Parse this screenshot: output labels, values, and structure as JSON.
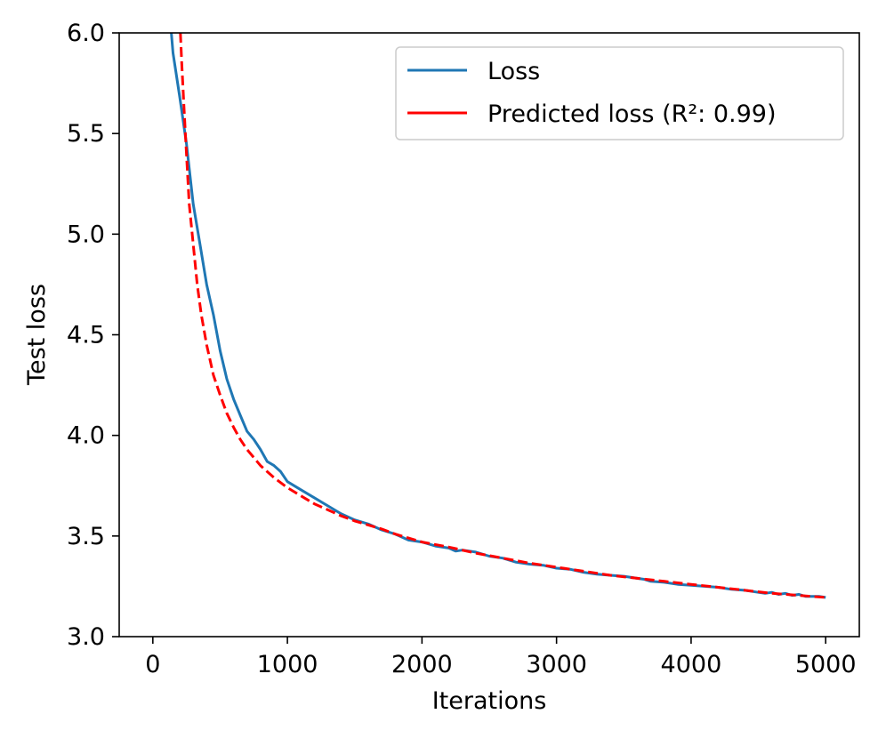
{
  "chart_data": {
    "type": "line",
    "title": "",
    "xlabel": "Iterations",
    "ylabel": "Test loss",
    "xlim": [
      -250,
      5250
    ],
    "ylim": [
      3.0,
      6.0
    ],
    "xticks": [
      0,
      1000,
      2000,
      3000,
      4000,
      5000
    ],
    "xtick_labels": [
      "0",
      "1000",
      "2000",
      "3000",
      "4000",
      "5000"
    ],
    "yticks": [
      3.0,
      3.5,
      4.0,
      4.5,
      5.0,
      5.5,
      6.0
    ],
    "ytick_labels": [
      "3.0",
      "3.5",
      "4.0",
      "4.5",
      "5.0",
      "5.5",
      "6.0"
    ],
    "grid": false,
    "legend_position": "top-right",
    "series": [
      {
        "name": "Loss",
        "color": "#1f77b4",
        "style": "solid",
        "x": [
          100,
          150,
          200,
          250,
          300,
          350,
          400,
          450,
          500,
          550,
          600,
          650,
          700,
          750,
          800,
          850,
          900,
          950,
          1000,
          1100,
          1200,
          1300,
          1400,
          1500,
          1600,
          1700,
          1800,
          1900,
          2000,
          2100,
          2200,
          2250,
          2300,
          2400,
          2500,
          2600,
          2700,
          2800,
          2900,
          3000,
          3100,
          3200,
          3300,
          3400,
          3500,
          3600,
          3650,
          3700,
          3800,
          3900,
          4000,
          4100,
          4200,
          4300,
          4400,
          4500,
          4550,
          4600,
          4650,
          4700,
          4750,
          4800,
          4850,
          4900,
          4950,
          5000
        ],
        "y": [
          6.3,
          5.9,
          5.68,
          5.45,
          5.15,
          4.95,
          4.75,
          4.6,
          4.42,
          4.28,
          4.18,
          4.1,
          4.02,
          3.98,
          3.93,
          3.87,
          3.85,
          3.82,
          3.77,
          3.73,
          3.69,
          3.65,
          3.61,
          3.58,
          3.56,
          3.53,
          3.51,
          3.48,
          3.47,
          3.45,
          3.44,
          3.425,
          3.43,
          3.42,
          3.4,
          3.39,
          3.37,
          3.36,
          3.355,
          3.34,
          3.335,
          3.32,
          3.31,
          3.305,
          3.3,
          3.29,
          3.285,
          3.275,
          3.27,
          3.26,
          3.255,
          3.25,
          3.245,
          3.235,
          3.23,
          3.22,
          3.215,
          3.22,
          3.21,
          3.215,
          3.205,
          3.21,
          3.2,
          3.2,
          3.2,
          3.195
        ]
      },
      {
        "name": "Predicted loss (R²: 0.99)",
        "color": "#ff0000",
        "style": "dashed",
        "x": [
          205,
          215,
          230,
          250,
          270,
          300,
          330,
          360,
          400,
          450,
          500,
          550,
          600,
          650,
          700,
          800,
          900,
          1000,
          1100,
          1200,
          1300,
          1400,
          1500,
          1600,
          1700,
          1800,
          1900,
          2000,
          2200,
          2400,
          2600,
          2800,
          3000,
          3200,
          3400,
          3600,
          3800,
          4000,
          4200,
          4400,
          4600,
          4800,
          5000
        ],
        "y": [
          6.0,
          5.85,
          5.65,
          5.4,
          5.15,
          4.95,
          4.75,
          4.6,
          4.45,
          4.3,
          4.2,
          4.11,
          4.04,
          3.98,
          3.93,
          3.85,
          3.79,
          3.74,
          3.7,
          3.66,
          3.63,
          3.6,
          3.575,
          3.555,
          3.535,
          3.51,
          3.49,
          3.47,
          3.445,
          3.415,
          3.39,
          3.365,
          3.345,
          3.325,
          3.305,
          3.29,
          3.275,
          3.26,
          3.245,
          3.23,
          3.215,
          3.205,
          3.195
        ]
      }
    ]
  }
}
